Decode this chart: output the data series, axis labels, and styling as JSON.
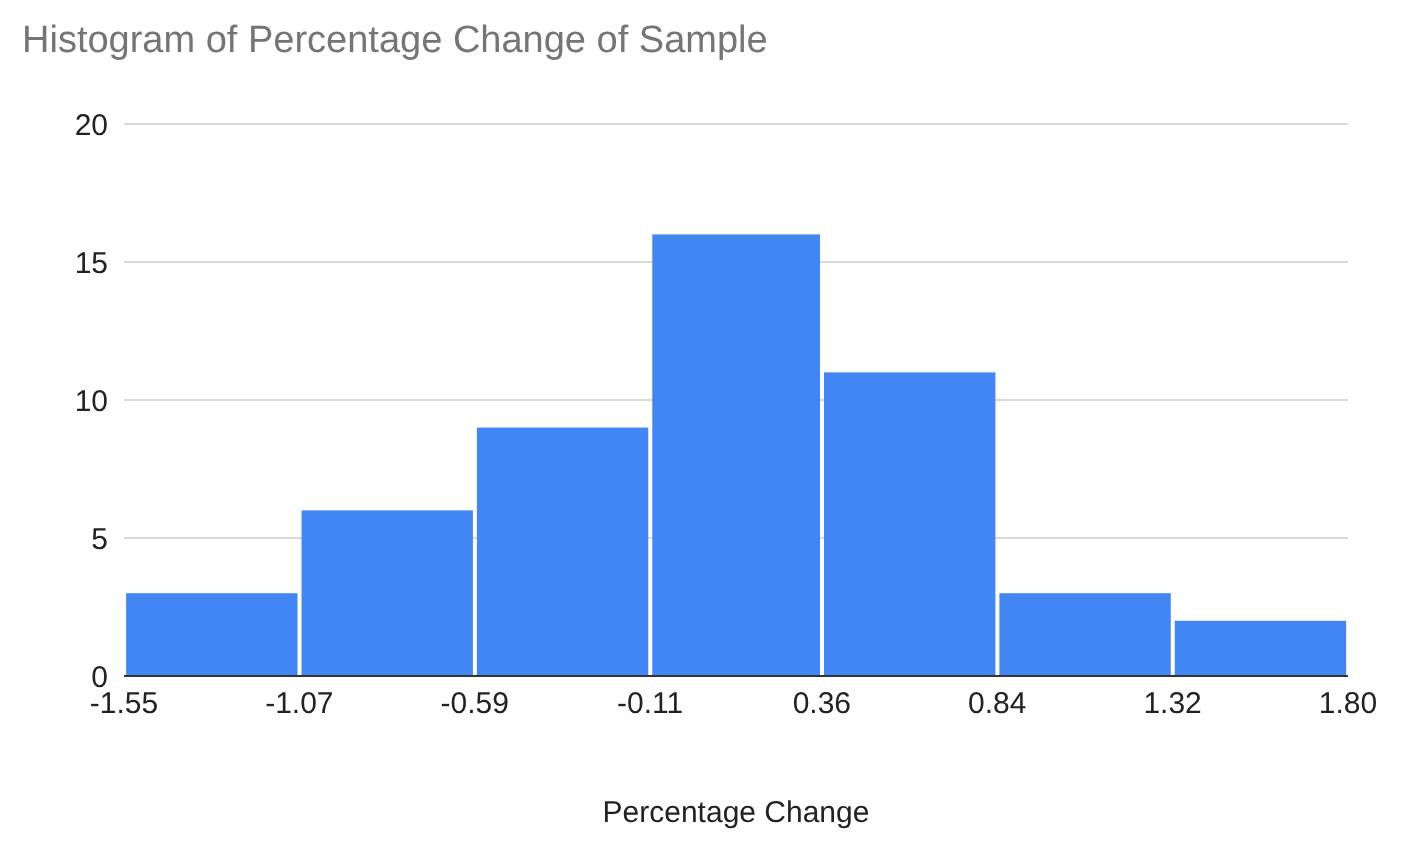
{
  "chart_data": {
    "type": "histogram",
    "title": "Histogram of Percentage Change of Sample",
    "xlabel": "Percentage Change",
    "bins": [
      -1.55,
      -1.07,
      -0.59,
      -0.11,
      0.36,
      0.84,
      1.32,
      1.8
    ],
    "values": [
      3,
      6,
      9,
      16,
      11,
      3,
      2
    ],
    "color": "#4285f4",
    "xticks": [
      {
        "value": -1.55,
        "label": "-1.55"
      },
      {
        "value": -1.07,
        "label": "-1.07"
      },
      {
        "value": -0.59,
        "label": "-0.59"
      },
      {
        "value": -0.11,
        "label": "-0.11"
      },
      {
        "value": 0.36,
        "label": "0.36"
      },
      {
        "value": 0.84,
        "label": "0.84"
      },
      {
        "value": 1.32,
        "label": "1.32"
      },
      {
        "value": 1.8,
        "label": "1.80"
      }
    ],
    "xlim": [
      -1.55,
      1.8
    ],
    "ylim": [
      0,
      20
    ],
    "yticks": [
      0,
      5,
      10,
      15,
      20
    ],
    "grid": "y",
    "legend": false
  }
}
